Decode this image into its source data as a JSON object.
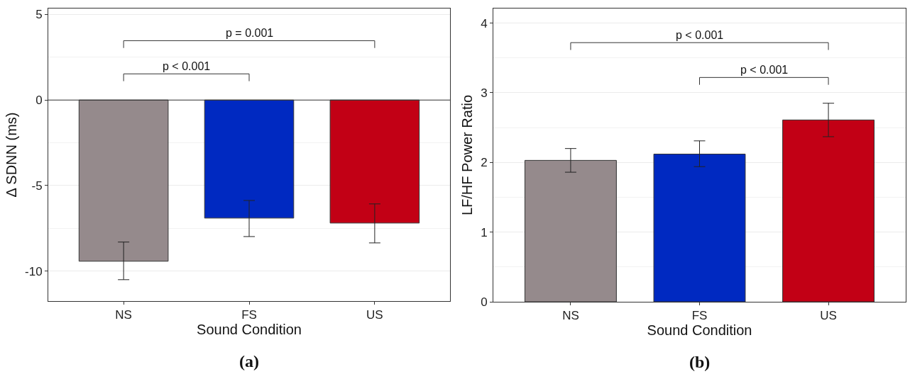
{
  "chart_data": [
    {
      "type": "bar",
      "xlabel": "Sound Condition",
      "ylabel": "Δ SDNN (ms)",
      "categories": [
        "NS",
        "FS",
        "US"
      ],
      "values": [
        -9.42,
        -6.9,
        -7.19
      ],
      "colors": [
        "#958a8c",
        "#0029c1",
        "#c20015"
      ],
      "errors": [
        [
          -10.5,
          -8.3
        ],
        [
          -7.98,
          -5.87
        ],
        [
          -8.35,
          -6.07
        ]
      ],
      "ylim": [
        -11.75,
        5.35
      ],
      "yticks": [
        -10,
        -5,
        0,
        5
      ],
      "grid": "y",
      "ref_lines": [
        {
          "axis": "y",
          "value": 0
        }
      ],
      "annotations": [
        "p = 0.001",
        "p < 0.001",
        "(a)"
      ]
    },
    {
      "type": "bar",
      "xlabel": "Sound Condition",
      "ylabel": "LF/HF Power Ratio",
      "categories": [
        "NS",
        "FS",
        "US"
      ],
      "values": [
        2.03,
        2.12,
        2.61
      ],
      "colors": [
        "#958a8c",
        "#0029c1",
        "#c20015"
      ],
      "errors": [
        [
          1.86,
          2.2
        ],
        [
          1.94,
          2.31
        ],
        [
          2.37,
          2.85
        ]
      ],
      "ylim": [
        0,
        4.21
      ],
      "yticks": [
        0,
        1,
        2,
        3,
        4
      ],
      "grid": "y",
      "annotations": [
        "p < 0.001",
        "p < 0.001",
        "(b)"
      ]
    }
  ]
}
